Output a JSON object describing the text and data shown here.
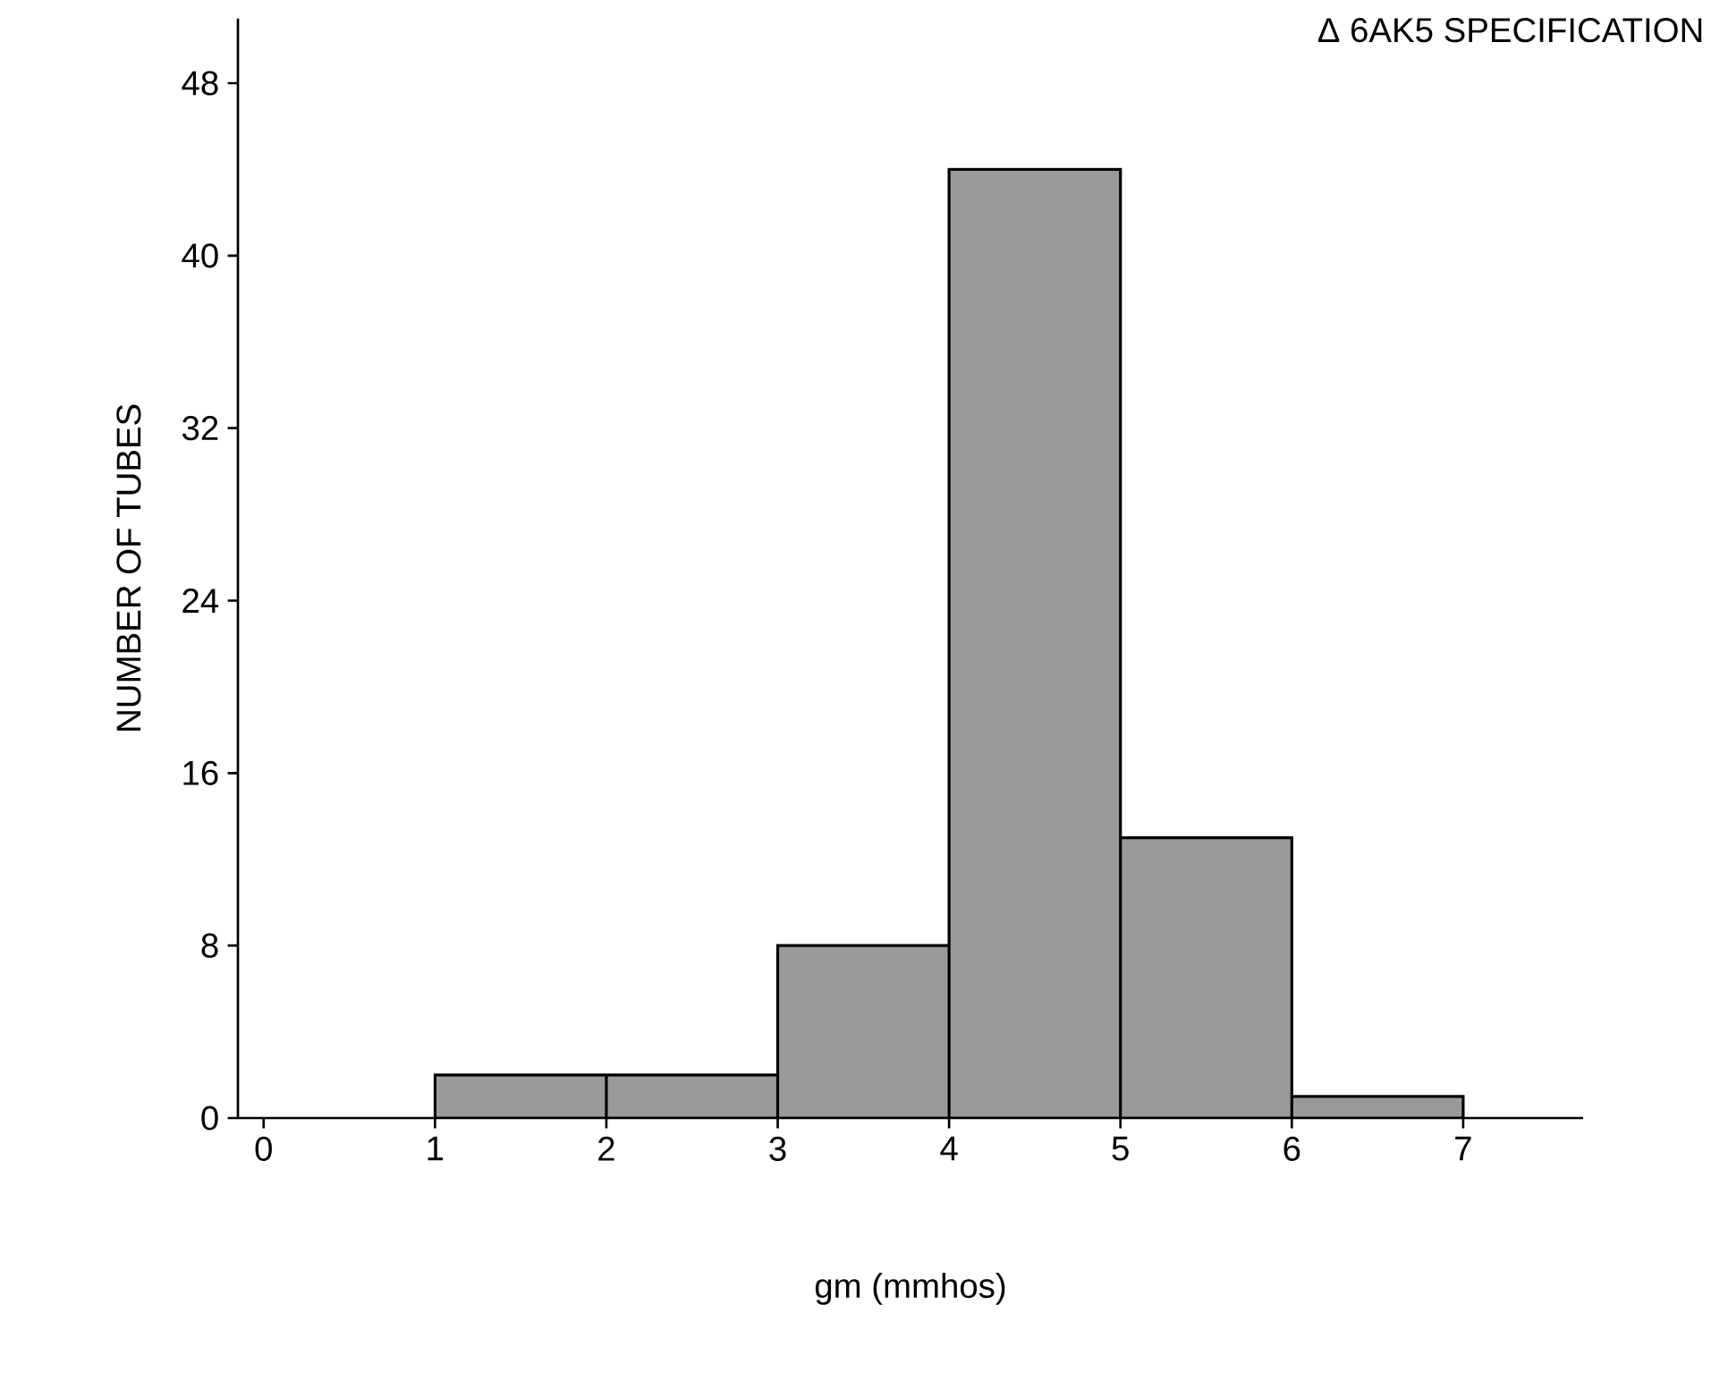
{
  "chart_data": {
    "type": "histogram",
    "bins": [
      1,
      2,
      3,
      4,
      5,
      6,
      7
    ],
    "values": [
      2,
      2,
      8,
      44,
      13,
      1
    ],
    "color": "#9a9a9a",
    "xlabel": "gm (mmhos)",
    "ylabel": "NUMBER OF TUBES",
    "xlim": [
      -0.15,
      7.7
    ],
    "ylim": [
      0,
      51
    ],
    "xticks": [
      0,
      1,
      2,
      3,
      4,
      5,
      6,
      7
    ],
    "yticks": [
      0,
      8,
      16,
      24,
      32,
      40,
      48
    ],
    "annotations": [
      "Δ  6AK5 SPECIFICATION"
    ],
    "grid": false
  }
}
